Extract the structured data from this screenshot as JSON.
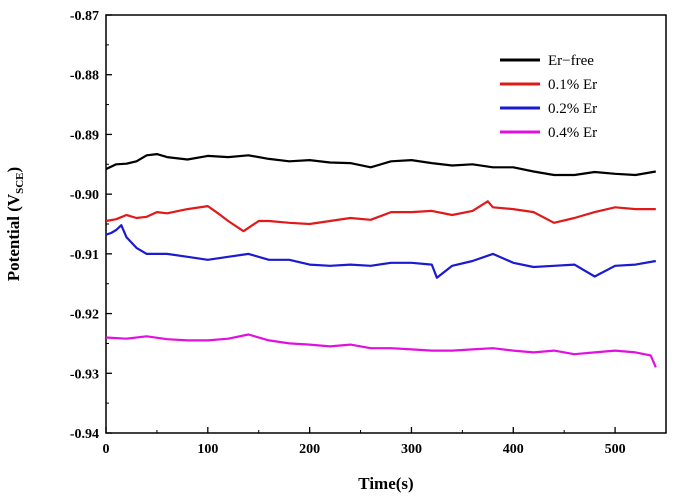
{
  "chart_data": {
    "type": "line",
    "title": "",
    "xlabel": "Time(s)",
    "ylabel_main": "Potential (V",
    "ylabel_sub": "SCE",
    "ylabel_close": ")",
    "xlim": [
      0,
      550
    ],
    "ylim": [
      -0.94,
      -0.87
    ],
    "xticks": [
      0,
      100,
      200,
      300,
      400,
      500
    ],
    "xtick_labels": [
      "0",
      "100",
      "200",
      "300",
      "400",
      "500"
    ],
    "yticks": [
      -0.94,
      -0.93,
      -0.92,
      -0.91,
      -0.9,
      -0.89,
      -0.88,
      -0.87
    ],
    "ytick_labels": [
      "-0.94",
      "-0.93",
      "-0.92",
      "-0.91",
      "-0.90",
      "-0.89",
      "-0.88",
      "-0.87"
    ],
    "grid": false,
    "legend_position": "top-right",
    "series": [
      {
        "name": "Er−free",
        "color": "#000000",
        "x": [
          0,
          10,
          20,
          30,
          40,
          50,
          60,
          80,
          100,
          120,
          140,
          160,
          180,
          200,
          220,
          240,
          260,
          280,
          300,
          320,
          340,
          360,
          380,
          400,
          420,
          440,
          460,
          480,
          500,
          520,
          540
        ],
        "y": [
          -0.8958,
          -0.895,
          -0.8949,
          -0.8945,
          -0.8935,
          -0.8933,
          -0.8938,
          -0.8942,
          -0.8936,
          -0.8938,
          -0.8935,
          -0.8941,
          -0.8945,
          -0.8943,
          -0.8947,
          -0.8948,
          -0.8955,
          -0.8945,
          -0.8943,
          -0.8948,
          -0.8952,
          -0.895,
          -0.8955,
          -0.8955,
          -0.8962,
          -0.8968,
          -0.8968,
          -0.8963,
          -0.8966,
          -0.8968,
          -0.8962
        ]
      },
      {
        "name": "0.1% Er",
        "color": "#e01a1a",
        "x": [
          0,
          10,
          20,
          30,
          40,
          50,
          60,
          80,
          100,
          110,
          120,
          135,
          150,
          160,
          180,
          200,
          220,
          240,
          260,
          280,
          300,
          320,
          340,
          360,
          375,
          380,
          400,
          420,
          440,
          460,
          480,
          500,
          520,
          540
        ],
        "y": [
          -0.9045,
          -0.9042,
          -0.9035,
          -0.904,
          -0.9038,
          -0.903,
          -0.9032,
          -0.9025,
          -0.902,
          -0.9032,
          -0.9045,
          -0.9062,
          -0.9045,
          -0.9045,
          -0.9048,
          -0.905,
          -0.9045,
          -0.904,
          -0.9043,
          -0.903,
          -0.903,
          -0.9028,
          -0.9035,
          -0.9028,
          -0.9012,
          -0.9022,
          -0.9025,
          -0.903,
          -0.9048,
          -0.904,
          -0.903,
          -0.9022,
          -0.9025,
          -0.9025
        ]
      },
      {
        "name": "0.2% Er",
        "color": "#1a1ad0",
        "x": [
          0,
          5,
          10,
          15,
          20,
          30,
          40,
          60,
          80,
          100,
          120,
          140,
          160,
          180,
          200,
          220,
          240,
          260,
          280,
          300,
          320,
          325,
          340,
          360,
          380,
          400,
          420,
          440,
          460,
          480,
          500,
          520,
          540
        ],
        "y": [
          -0.9068,
          -0.9065,
          -0.906,
          -0.9052,
          -0.9072,
          -0.909,
          -0.91,
          -0.91,
          -0.9105,
          -0.911,
          -0.9105,
          -0.91,
          -0.911,
          -0.911,
          -0.9118,
          -0.912,
          -0.9118,
          -0.912,
          -0.9115,
          -0.9115,
          -0.9118,
          -0.914,
          -0.912,
          -0.9112,
          -0.91,
          -0.9115,
          -0.9122,
          -0.912,
          -0.9118,
          -0.9138,
          -0.912,
          -0.9118,
          -0.9112
        ]
      },
      {
        "name": "0.4% Er",
        "color": "#e010e0",
        "x": [
          0,
          20,
          40,
          60,
          80,
          100,
          120,
          140,
          160,
          180,
          200,
          220,
          240,
          260,
          280,
          300,
          320,
          340,
          360,
          380,
          400,
          420,
          440,
          460,
          480,
          500,
          520,
          535,
          540
        ],
        "y": [
          -0.924,
          -0.9242,
          -0.9238,
          -0.9243,
          -0.9245,
          -0.9245,
          -0.9242,
          -0.9235,
          -0.9245,
          -0.925,
          -0.9252,
          -0.9255,
          -0.9252,
          -0.9258,
          -0.9258,
          -0.926,
          -0.9262,
          -0.9262,
          -0.926,
          -0.9258,
          -0.9262,
          -0.9265,
          -0.9262,
          -0.9268,
          -0.9265,
          -0.9262,
          -0.9265,
          -0.927,
          -0.929
        ]
      }
    ]
  }
}
